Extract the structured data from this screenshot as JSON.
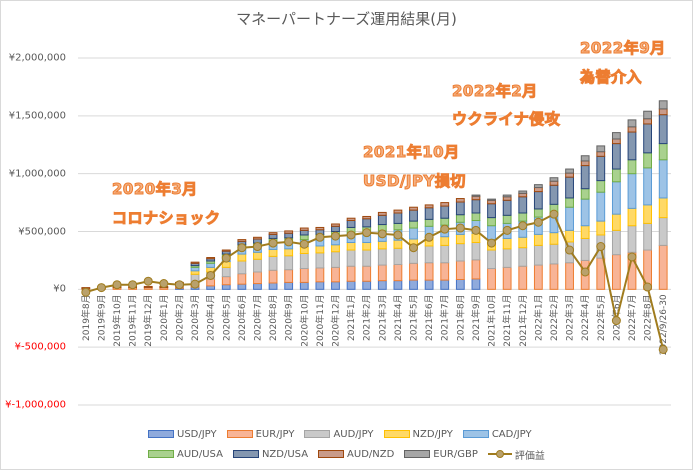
{
  "chart_data": {
    "type": "bar",
    "stacked": true,
    "title": "マネーパートナーズ運用結果(月)",
    "xlabel": "",
    "ylabel": "",
    "ylim": [
      -1000000,
      2000000
    ],
    "yticks": [
      {
        "value": 2000000,
        "label": "¥2,000,000"
      },
      {
        "value": 1500000,
        "label": "¥1,500,000"
      },
      {
        "value": 1000000,
        "label": "¥1,000,000"
      },
      {
        "value": 500000,
        "label": "¥500,000"
      },
      {
        "value": 0,
        "label": "¥0"
      },
      {
        "value": -500000,
        "label": "¥-500,000"
      },
      {
        "value": -1000000,
        "label": "¥-1,000,000"
      }
    ],
    "grid": true,
    "legend_position": "bottom",
    "categories": [
      "2019年8月",
      "2019年9月",
      "2019年10月",
      "2019年11月",
      "2019年12月",
      "2020年1月",
      "2020年2月",
      "2020年3月",
      "2020年4月",
      "2020年5月",
      "2020年6月",
      "2020年7月",
      "2020年8月",
      "2020年9月",
      "2020年10月",
      "2020年11月",
      "2020年12月",
      "2021年1月",
      "2021年2月",
      "2021年3月",
      "2021年4月",
      "2021年5月",
      "2021年6月",
      "2021年7月",
      "2021年8月",
      "2021年9月",
      "2021年10月",
      "2021年11月",
      "2021年12月",
      "2022年1月",
      "2022年2月",
      "2022年3月",
      "2022年4月",
      "2022年5月",
      "2022年6月",
      "2022年7月",
      "2022年8月",
      "2022/9/26-30"
    ],
    "series": [
      {
        "name": "USD/JPY",
        "fill": "#8faadc",
        "stroke": "#4472c4",
        "values": [
          0,
          0,
          0,
          0,
          0,
          0,
          10000,
          20000,
          30000,
          40000,
          45000,
          50000,
          55000,
          60000,
          60000,
          65000,
          65000,
          70000,
          70000,
          75000,
          75000,
          80000,
          80000,
          80000,
          85000,
          90000,
          0,
          0,
          0,
          0,
          0,
          0,
          0,
          0,
          0,
          0,
          0,
          0
        ]
      },
      {
        "name": "EUR/JPY",
        "fill": "#f8b496",
        "stroke": "#ed7d31",
        "values": [
          5000,
          10000,
          15000,
          15000,
          15000,
          15000,
          20000,
          30000,
          60000,
          70000,
          90000,
          100000,
          110000,
          110000,
          120000,
          120000,
          125000,
          130000,
          130000,
          135000,
          140000,
          145000,
          150000,
          150000,
          160000,
          165000,
          180000,
          190000,
          200000,
          210000,
          220000,
          230000,
          250000,
          270000,
          300000,
          320000,
          340000,
          380000
        ]
      },
      {
        "name": "AUD/JPY",
        "fill": "#c9c9c9",
        "stroke": "#a5a5a5",
        "values": [
          0,
          0,
          0,
          0,
          0,
          0,
          0,
          80000,
          60000,
          80000,
          110000,
          110000,
          120000,
          120000,
          130000,
          130000,
          135000,
          140000,
          140000,
          140000,
          140000,
          140000,
          145000,
          150000,
          150000,
          150000,
          160000,
          160000,
          160000,
          170000,
          170000,
          180000,
          190000,
          200000,
          210000,
          230000,
          230000,
          240000
        ]
      },
      {
        "name": "NZD/JPY",
        "fill": "#ffd966",
        "stroke": "#ffc000",
        "values": [
          0,
          0,
          0,
          0,
          0,
          0,
          0,
          30000,
          40000,
          50000,
          60000,
          60000,
          60000,
          60000,
          60000,
          60000,
          60000,
          65000,
          65000,
          65000,
          70000,
          70000,
          75000,
          75000,
          80000,
          80000,
          90000,
          90000,
          90000,
          95000,
          100000,
          100000,
          110000,
          120000,
          140000,
          150000,
          160000,
          170000
        ]
      },
      {
        "name": "CAD/JPY",
        "fill": "#9dc3e6",
        "stroke": "#5b9bd5",
        "values": [
          0,
          0,
          0,
          0,
          0,
          0,
          10000,
          30000,
          35000,
          40000,
          50000,
          50000,
          60000,
          60000,
          60000,
          60000,
          70000,
          80000,
          85000,
          90000,
          90000,
          95000,
          95000,
          100000,
          105000,
          110000,
          120000,
          130000,
          140000,
          150000,
          170000,
          200000,
          230000,
          250000,
          280000,
          300000,
          320000,
          330000
        ]
      },
      {
        "name": "AUD/USA",
        "fill": "#a9d18e",
        "stroke": "#70ad47",
        "values": [
          0,
          0,
          0,
          0,
          0,
          0,
          5000,
          15000,
          20000,
          25000,
          30000,
          30000,
          35000,
          35000,
          40000,
          40000,
          45000,
          50000,
          50000,
          55000,
          55000,
          60000,
          60000,
          60000,
          65000,
          65000,
          70000,
          70000,
          70000,
          70000,
          75000,
          80000,
          90000,
          100000,
          110000,
          120000,
          130000,
          140000
        ]
      },
      {
        "name": "NZD/USA",
        "fill": "#8497b0",
        "stroke": "#264478",
        "values": [
          0,
          0,
          0,
          0,
          0,
          0,
          5000,
          20000,
          20000,
          25000,
          30000,
          35000,
          35000,
          40000,
          40000,
          40000,
          45000,
          60000,
          70000,
          80000,
          90000,
          95000,
          100000,
          105000,
          110000,
          115000,
          120000,
          130000,
          140000,
          150000,
          165000,
          180000,
          200000,
          210000,
          220000,
          240000,
          250000,
          250000
        ]
      },
      {
        "name": "AUD/NZD",
        "fill": "#c99b8a",
        "stroke": "#9e480e",
        "values": [
          10000,
          10000,
          10000,
          10000,
          10000,
          10000,
          10000,
          10000,
          10000,
          10000,
          15000,
          15000,
          15000,
          20000,
          20000,
          20000,
          20000,
          20000,
          20000,
          25000,
          25000,
          25000,
          25000,
          30000,
          30000,
          30000,
          30000,
          30000,
          30000,
          35000,
          35000,
          35000,
          40000,
          40000,
          40000,
          45000,
          45000,
          50000
        ]
      },
      {
        "name": "EUR/GBP",
        "fill": "#a6a6a6",
        "stroke": "#636363",
        "values": [
          0,
          0,
          0,
          0,
          0,
          0,
          0,
          0,
          0,
          0,
          0,
          0,
          0,
          0,
          0,
          0,
          0,
          0,
          0,
          0,
          0,
          0,
          0,
          0,
          0,
          10000,
          10000,
          15000,
          20000,
          25000,
          30000,
          35000,
          45000,
          50000,
          55000,
          60000,
          65000,
          70000
        ]
      }
    ],
    "line_series": {
      "name": "評価益",
      "stroke": "#a07c1e",
      "marker_fill": "#b9a16c",
      "values": [
        -25000,
        15000,
        40000,
        40000,
        70000,
        50000,
        40000,
        45000,
        120000,
        270000,
        360000,
        370000,
        400000,
        410000,
        390000,
        450000,
        460000,
        470000,
        490000,
        480000,
        470000,
        360000,
        450000,
        520000,
        530000,
        510000,
        400000,
        510000,
        550000,
        580000,
        650000,
        340000,
        150000,
        370000,
        -270000,
        280000,
        20000,
        -520000
      ]
    },
    "annotations": [
      {
        "text": "2020年3月",
        "near": "2020年3月"
      },
      {
        "text": "コロナショック",
        "near": "2020年3月"
      },
      {
        "text": "2021年10月",
        "near": "2021年10月"
      },
      {
        "text": "USD/JPY損切",
        "near": "2021年10月"
      },
      {
        "text": "2022年2月",
        "near": "2022年2月"
      },
      {
        "text": "ウクライナ侵攻",
        "near": "2022年2月"
      },
      {
        "text": "2022年9月",
        "near": "2022/9/26-30"
      },
      {
        "text": "為替介入",
        "near": "2022/9/26-30"
      }
    ]
  }
}
